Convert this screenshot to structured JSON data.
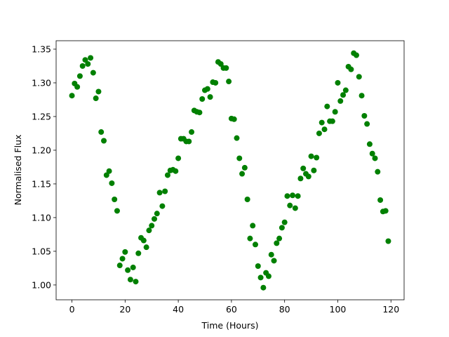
{
  "chart_data": {
    "type": "scatter",
    "xlabel": "Time (Hours)",
    "ylabel": "Normalised Flux",
    "color": "#008000",
    "x": [
      0,
      1,
      2,
      3,
      4,
      5,
      6,
      7,
      8,
      9,
      10,
      11,
      12,
      13,
      14,
      15,
      16,
      17,
      18,
      19,
      20,
      21,
      22,
      23,
      24,
      25,
      26,
      27,
      28,
      29,
      30,
      31,
      32,
      33,
      34,
      35,
      36,
      37,
      38,
      39,
      40,
      41,
      42,
      43,
      44,
      45,
      46,
      47,
      48,
      49,
      50,
      51,
      52,
      53,
      54,
      55,
      56,
      57,
      58,
      59,
      60,
      61,
      62,
      63,
      64,
      65,
      66,
      67,
      68,
      69,
      70,
      71,
      72,
      73,
      74,
      75,
      76,
      77,
      78,
      79,
      80,
      81,
      82,
      83,
      84,
      85,
      86,
      87,
      88,
      89,
      90,
      91,
      92,
      93,
      94,
      95,
      96,
      97,
      98,
      99,
      100,
      101,
      102,
      103,
      104,
      105,
      106,
      107,
      108,
      109,
      110,
      111,
      112,
      113,
      114,
      115,
      116,
      117,
      118,
      119
    ],
    "values": [
      1.281,
      1.299,
      1.294,
      1.31,
      1.325,
      1.334,
      1.328,
      1.337,
      1.315,
      1.277,
      1.287,
      1.227,
      1.214,
      1.163,
      1.169,
      1.151,
      1.127,
      1.11,
      1.029,
      1.039,
      1.049,
      1.022,
      1.008,
      1.026,
      1.005,
      1.047,
      1.07,
      1.066,
      1.056,
      1.081,
      1.088,
      1.098,
      1.106,
      1.137,
      1.117,
      1.139,
      1.163,
      1.17,
      1.171,
      1.169,
      1.188,
      1.217,
      1.217,
      1.213,
      1.213,
      1.227,
      1.259,
      1.257,
      1.256,
      1.276,
      1.289,
      1.291,
      1.279,
      1.301,
      1.3,
      1.331,
      1.328,
      1.322,
      1.322,
      1.302,
      1.247,
      1.246,
      1.218,
      1.188,
      1.165,
      1.174,
      1.127,
      1.069,
      1.088,
      1.06,
      1.028,
      1.011,
      0.996,
      1.018,
      1.013,
      1.045,
      1.036,
      1.062,
      1.069,
      1.085,
      1.093,
      1.132,
      1.118,
      1.133,
      1.114,
      1.132,
      1.158,
      1.173,
      1.165,
      1.161,
      1.191,
      1.17,
      1.189,
      1.225,
      1.241,
      1.231,
      1.265,
      1.243,
      1.243,
      1.257,
      1.3,
      1.273,
      1.282,
      1.289,
      1.324,
      1.32,
      1.344,
      1.341,
      1.309,
      1.281,
      1.251,
      1.239,
      1.209,
      1.195,
      1.188,
      1.168,
      1.126,
      1.109,
      1.11,
      1.065
    ],
    "xlim": [
      -5.95,
      124.95
    ],
    "ylim": [
      0.978,
      1.3625
    ],
    "xticks": [
      0,
      20,
      40,
      60,
      80,
      100,
      120
    ],
    "yticks": [
      {
        "value": 1.0,
        "label": "1.00"
      },
      1.05,
      {
        "value": 1.1,
        "label": "1.10"
      },
      1.15,
      {
        "value": 1.2,
        "label": "1.20"
      },
      1.25,
      {
        "value": 1.3,
        "label": "1.30"
      },
      1.35
    ]
  }
}
